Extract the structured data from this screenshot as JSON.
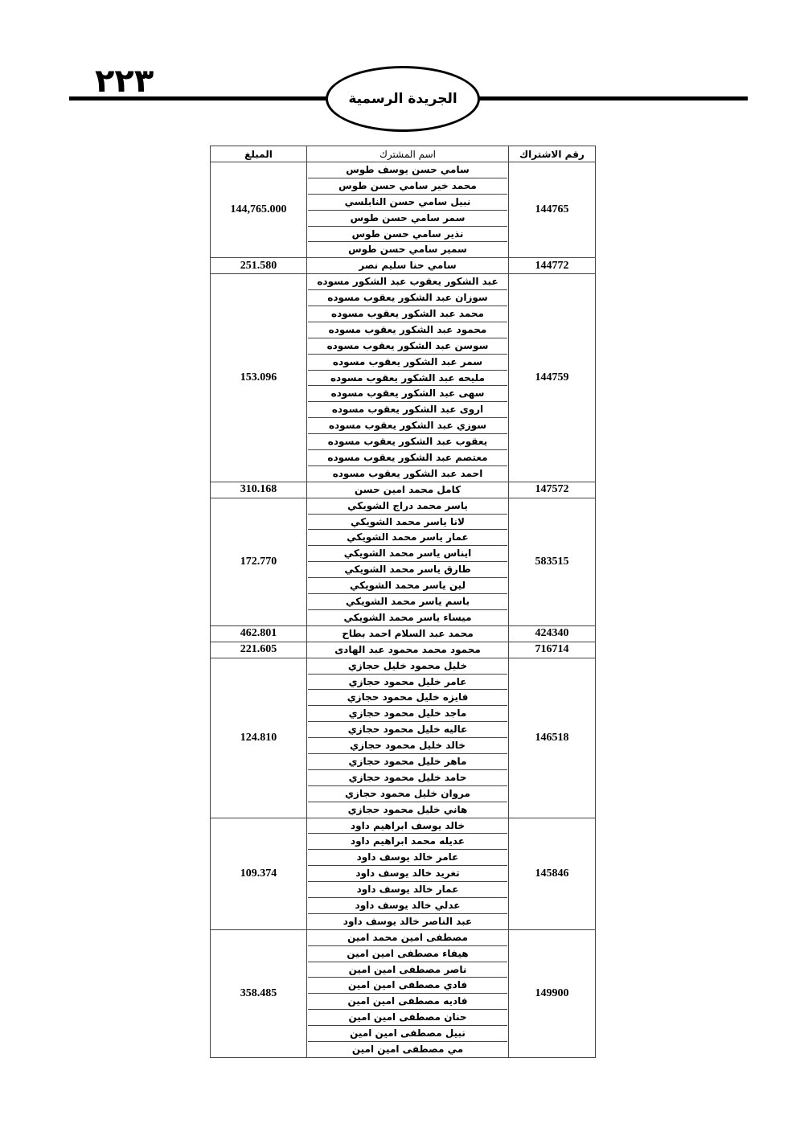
{
  "header": {
    "page_number": "٢٢٣",
    "publication_title": "الجريدة الرسمية"
  },
  "table": {
    "columns": {
      "amount": "المبلغ",
      "name": "اسم المشترك",
      "subscription": "رقم الاشتراك"
    },
    "groups": [
      {
        "subscription": "144765",
        "amount": "144,765.000",
        "names": [
          "سامي حسن يوسف طوس",
          "محمد خير سامي حسن طوس",
          "نبيل سامي حسن النابلسي",
          "سمر سامي حسن طوس",
          "نذير سامي حسن طوس",
          "سمير سامي حسن طوس"
        ]
      },
      {
        "subscription": "144772",
        "amount": "251.580",
        "names": [
          "سامي حنا سليم نصر"
        ]
      },
      {
        "subscription": "144759",
        "amount": "153.096",
        "names": [
          "عبد الشكور يعقوب عبد الشكور مسوده",
          "سوزان عبد الشكور يعقوب مسوده",
          "محمد عبد الشكور يعقوب مسوده",
          "محمود عبد الشكور يعقوب مسوده",
          "سوسن عبد الشكور يعقوب مسوده",
          "سمر عبد الشكور يعقوب مسوده",
          "مليحه عبد الشكور يعقوب مسوده",
          "سهى عبد الشكور يعقوب مسوده",
          "اروى عبد الشكور يعقوب مسوده",
          "سوزي عبد الشكور يعقوب مسوده",
          "يعقوب عبد الشكور يعقوب مسوده",
          "معتصم عبد الشكور يعقوب مسوده",
          "احمد عبد الشكور يعقوب مسوده"
        ]
      },
      {
        "subscription": "147572",
        "amount": "310.168",
        "names": [
          "كامل محمد امين حسن"
        ]
      },
      {
        "subscription": "583515",
        "amount": "172.770",
        "names": [
          "ياسر محمد دراج الشويكي",
          "لانا ياسر محمد الشويكي",
          "عمار ياسر محمد الشويكي",
          "ايناس ياسر محمد الشويكي",
          "طارق ياسر محمد الشويكي",
          "لين ياسر محمد الشويكي",
          "باسم ياسر محمد الشويكي",
          "ميساء ياسر محمد الشويكي"
        ]
      },
      {
        "subscription": "424340",
        "amount": "462.801",
        "names": [
          "محمد عبد السلام احمد بطاح"
        ]
      },
      {
        "subscription": "716714",
        "amount": "221.605",
        "names": [
          "محمود محمد محمود عبد الهادى"
        ]
      },
      {
        "subscription": "146518",
        "amount": "124.810",
        "names": [
          "خليل محمود خليل حجازي",
          "عامر خليل محمود حجازي",
          "فايزه خليل محمود حجازي",
          "ماجد خليل محمود حجازي",
          "عاليه خليل محمود حجازي",
          "خالد خليل محمود حجازي",
          "ماهر خليل محمود حجازي",
          "حامد خليل محمود حجازي",
          "مروان خليل محمود حجازي",
          "هاني خليل محمود حجازي"
        ]
      },
      {
        "subscription": "145846",
        "amount": "109.374",
        "names": [
          "خالد يوسف ابراهيم داود",
          "عديله محمد ابراهيم داود",
          "عامر خالد يوسف داود",
          "تغريد خالد يوسف داود",
          "عمار خالد يوسف داود",
          "عدلي خالد يوسف داود",
          "عبد الناصر خالد يوسف داود"
        ]
      },
      {
        "subscription": "149900",
        "amount": "358.485",
        "names": [
          "مصطفى امين محمد امين",
          "هيفاء مصطفى امين امين",
          "ناصر مصطفى امين امين",
          "فادي مصطفى امين امين",
          "فاديه مصطفى امين امين",
          "حنان مصطفى امين امين",
          "نبيل مصطفى امين امين",
          "مي مصطفى امين امين"
        ]
      }
    ]
  }
}
